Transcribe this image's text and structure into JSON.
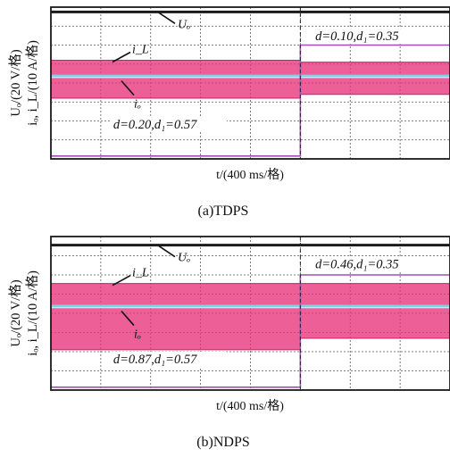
{
  "chart_data": [
    {
      "type": "line",
      "caption": "(a)TDPS",
      "ylabel_line1": "Uₒ/(20 V/格)",
      "ylabel_line2": "iₒ, i_L/(10 A/格)",
      "xlabel": "t/(400 ms/格)",
      "grid": true,
      "grid_divisions": {
        "x": 8,
        "y": 8
      },
      "switch_time_div": 5,
      "series": [
        {
          "name": "Uₒ",
          "label": "Uₒ",
          "color": "#1a1a1a",
          "level_div": [
            7.75,
            7.75
          ]
        },
        {
          "name": "i_L",
          "label": "i_L",
          "color": "#7ad3e6",
          "center_div": [
            4.35,
            4.35
          ],
          "band_div": [
            [
              3.2,
              5.2
            ],
            [
              3.4,
              5.1
            ]
          ],
          "band_color": "#e8327a"
        },
        {
          "name": "iₒ",
          "label": "iₒ",
          "color": "#c8e6f5",
          "level_div": [
            4.3,
            4.3
          ]
        },
        {
          "name": "d signal",
          "color": "#a050b4",
          "level_div": [
            0.15,
            6.0
          ]
        }
      ],
      "annotations": [
        {
          "text": "d=0.20,d₁=0.57",
          "x_div": 1.25,
          "y_div": 1.6
        },
        {
          "text": "d=0.10,d₁=0.35",
          "x_div": 5.3,
          "y_div": 6.25
        }
      ]
    },
    {
      "type": "line",
      "caption": "(b)NDPS",
      "ylabel_line1": "Uₒ/(20 V/格)",
      "ylabel_line2": "iₒ, i_L/(10 A/格)",
      "xlabel": "t/(400 ms/格)",
      "grid": true,
      "grid_divisions": {
        "x": 8,
        "y": 8
      },
      "switch_time_div": 5,
      "series": [
        {
          "name": "Uₒ",
          "label": "Uₒ",
          "color": "#1a1a1a",
          "level_div": [
            7.55,
            7.55
          ]
        },
        {
          "name": "i_L",
          "label": "i_L",
          "color": "#7ad3e6",
          "center_div": [
            4.35,
            4.35
          ],
          "band_div": [
            [
              2.1,
              5.55
            ],
            [
              2.7,
              5.55
            ]
          ],
          "band_color": "#e8327a"
        },
        {
          "name": "iₒ",
          "label": "iₒ",
          "color": "#c8e6f5",
          "level_div": [
            4.3,
            4.3
          ]
        },
        {
          "name": "d signal",
          "color": "#a050b4",
          "level_div": [
            0.15,
            6.0
          ]
        }
      ],
      "annotations": [
        {
          "text": "d=0.87,d₁=0.57",
          "x_div": 1.25,
          "y_div": 1.4
        },
        {
          "text": "d=0.46,d₁=0.35",
          "x_div": 5.3,
          "y_div": 6.35
        }
      ]
    }
  ],
  "colors": {
    "grid": "#555555",
    "frame": "#1a1a1a"
  }
}
